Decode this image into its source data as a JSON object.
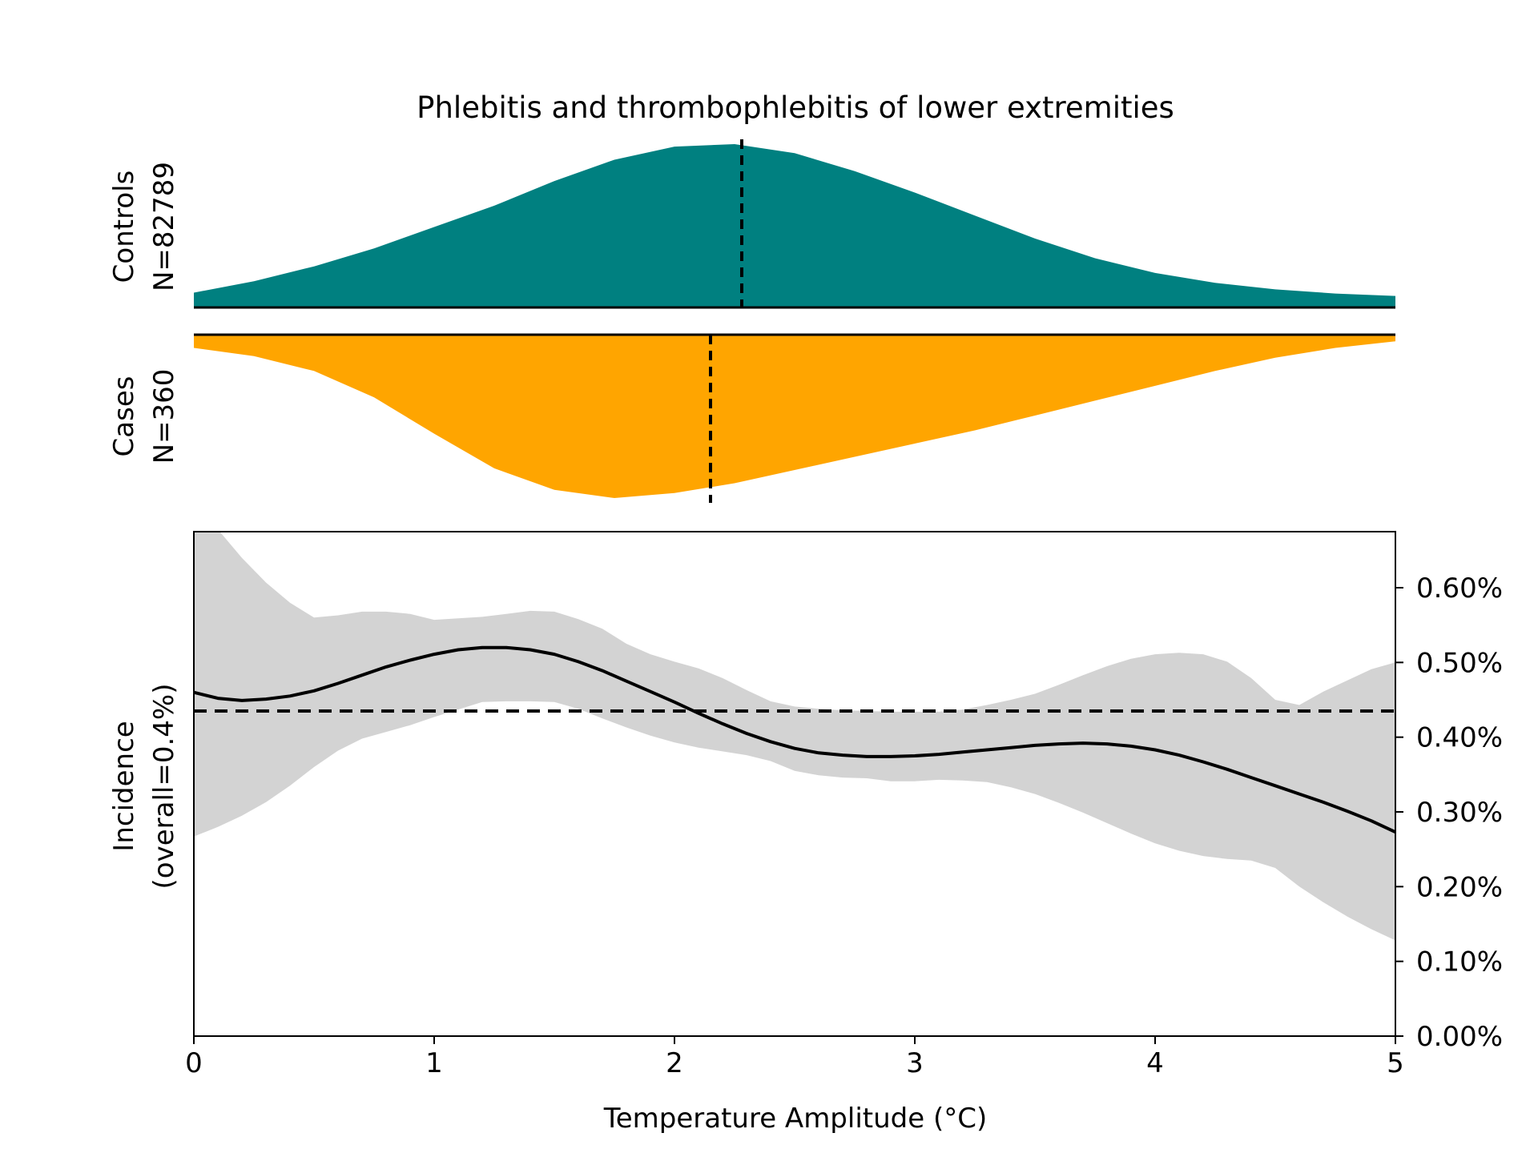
{
  "chart_data": {
    "title": "Phlebitis and thrombophlebitis of lower extremities",
    "xlabel": "Temperature Amplitude (°C)",
    "xlim": [
      0,
      5
    ],
    "x_ticks": [
      0,
      1,
      2,
      3,
      4,
      5
    ],
    "x_tick_labels": [
      "0",
      "1",
      "2",
      "3",
      "4",
      "5"
    ],
    "colors": {
      "controls": "#008080",
      "cases": "#FFA500",
      "ci_band": "#D3D3D3",
      "line": "#000000"
    },
    "controls": {
      "type": "area",
      "label_line1": "Controls",
      "label_line2": "N=82789",
      "median": 2.28,
      "x": [
        0,
        0.25,
        0.5,
        0.75,
        1.0,
        1.25,
        1.5,
        1.75,
        2.0,
        2.25,
        2.5,
        2.75,
        3.0,
        3.25,
        3.5,
        3.75,
        4.0,
        4.25,
        4.5,
        4.75,
        5.0
      ],
      "density": [
        0.09,
        0.16,
        0.25,
        0.36,
        0.49,
        0.62,
        0.77,
        0.9,
        0.98,
        0.995,
        0.94,
        0.83,
        0.7,
        0.56,
        0.42,
        0.3,
        0.21,
        0.15,
        0.11,
        0.085,
        0.07
      ]
    },
    "cases": {
      "type": "area",
      "label_line1": "Cases",
      "label_line2": "N=360",
      "median": 2.15,
      "x": [
        0,
        0.25,
        0.5,
        0.75,
        1.0,
        1.25,
        1.5,
        1.75,
        2.0,
        2.25,
        2.5,
        2.75,
        3.0,
        3.25,
        3.5,
        3.75,
        4.0,
        4.25,
        4.5,
        4.75,
        5.0
      ],
      "density": [
        0.08,
        0.13,
        0.22,
        0.38,
        0.6,
        0.81,
        0.94,
        0.99,
        0.96,
        0.9,
        0.82,
        0.74,
        0.66,
        0.58,
        0.49,
        0.4,
        0.31,
        0.22,
        0.14,
        0.08,
        0.04
      ]
    },
    "incidence": {
      "type": "line",
      "ylabel_line1": "Incidence",
      "ylabel_line2": "(overall=0.4%)",
      "ylim": [
        0,
        0.00675
      ],
      "y_ticks": [
        0,
        0.001,
        0.002,
        0.003,
        0.004,
        0.005,
        0.006
      ],
      "y_tick_labels": [
        "0.00%",
        "0.10%",
        "0.20%",
        "0.30%",
        "0.40%",
        "0.50%",
        "0.60%"
      ],
      "overall": 0.00435,
      "x": [
        0,
        0.1,
        0.2,
        0.3,
        0.4,
        0.5,
        0.6,
        0.7,
        0.8,
        0.9,
        1.0,
        1.1,
        1.2,
        1.3,
        1.4,
        1.5,
        1.6,
        1.7,
        1.8,
        1.9,
        2.0,
        2.1,
        2.2,
        2.3,
        2.4,
        2.5,
        2.6,
        2.7,
        2.8,
        2.9,
        3.0,
        3.1,
        3.2,
        3.3,
        3.4,
        3.5,
        3.6,
        3.7,
        3.8,
        3.9,
        4.0,
        4.1,
        4.2,
        4.3,
        4.4,
        4.5,
        4.6,
        4.7,
        4.8,
        4.9,
        5.0
      ],
      "y": [
        0.0046,
        0.00452,
        0.00449,
        0.00451,
        0.00455,
        0.00462,
        0.00472,
        0.00483,
        0.00494,
        0.00503,
        0.00511,
        0.00517,
        0.0052,
        0.0052,
        0.00517,
        0.00511,
        0.00501,
        0.00489,
        0.00475,
        0.00461,
        0.00447,
        0.00432,
        0.00418,
        0.00405,
        0.00394,
        0.00385,
        0.00379,
        0.00376,
        0.00374,
        0.00374,
        0.00375,
        0.00377,
        0.0038,
        0.00383,
        0.00386,
        0.00389,
        0.00391,
        0.00392,
        0.00391,
        0.00388,
        0.00383,
        0.00376,
        0.00367,
        0.00357,
        0.00346,
        0.00335,
        0.00324,
        0.00313,
        0.00301,
        0.00288,
        0.00273
      ],
      "ci_lower": [
        0.00267,
        0.0028,
        0.00295,
        0.00313,
        0.00335,
        0.0036,
        0.00382,
        0.00398,
        0.00407,
        0.00416,
        0.00427,
        0.00437,
        0.00447,
        0.00448,
        0.00448,
        0.00447,
        0.00438,
        0.00425,
        0.00413,
        0.00402,
        0.00393,
        0.00386,
        0.00381,
        0.00376,
        0.00368,
        0.00355,
        0.00349,
        0.00346,
        0.00345,
        0.00341,
        0.00341,
        0.00343,
        0.00342,
        0.0034,
        0.00333,
        0.00324,
        0.00312,
        0.00299,
        0.00285,
        0.00271,
        0.00258,
        0.00248,
        0.00241,
        0.00237,
        0.00235,
        0.00225,
        0.002,
        0.00179,
        0.0016,
        0.00143,
        0.00128
      ],
      "ci_upper": [
        0.0072,
        0.00678,
        0.0064,
        0.00607,
        0.0058,
        0.0056,
        0.00563,
        0.00568,
        0.00568,
        0.00565,
        0.00557,
        0.00559,
        0.00561,
        0.00565,
        0.00569,
        0.00568,
        0.00558,
        0.00545,
        0.00525,
        0.00511,
        0.00501,
        0.00492,
        0.00479,
        0.00463,
        0.00448,
        0.00441,
        0.00438,
        0.00436,
        0.00435,
        0.00434,
        0.00434,
        0.00434,
        0.00437,
        0.00443,
        0.0045,
        0.00458,
        0.0047,
        0.00483,
        0.00495,
        0.00505,
        0.00511,
        0.00513,
        0.00511,
        0.00501,
        0.00479,
        0.0045,
        0.00443,
        0.00461,
        0.00476,
        0.00491,
        0.005
      ]
    }
  }
}
